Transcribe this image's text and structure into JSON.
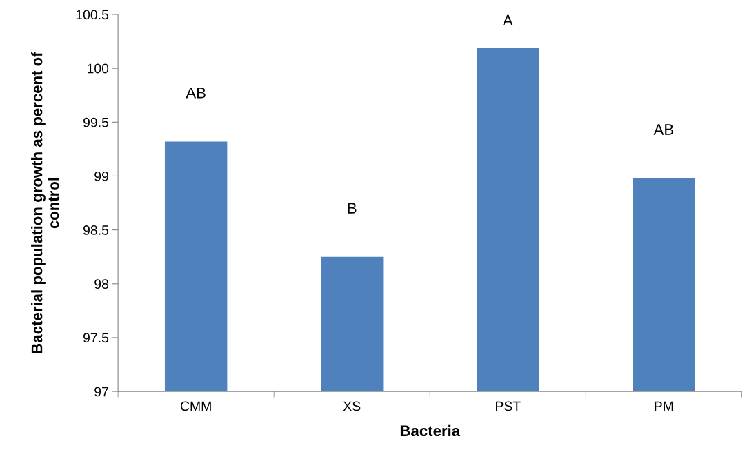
{
  "chart_data": {
    "type": "bar",
    "xlabel": "Bacteria",
    "ylabel": "Bacterial population growth as percent of\ncontrol",
    "categories": [
      "CMM",
      "XS",
      "PST",
      "PM"
    ],
    "values": [
      99.32,
      98.25,
      100.19,
      98.98
    ],
    "color": "#4f81bd",
    "ylim": [
      97,
      100.5
    ],
    "yticks": [
      97,
      97.5,
      98,
      98.5,
      99,
      99.5,
      100,
      100.5
    ],
    "annotations": [
      {
        "text": "AB",
        "x": "CMM",
        "y": 99.32
      },
      {
        "text": "B",
        "x": "XS",
        "y": 98.25
      },
      {
        "text": "A",
        "x": "PST",
        "y": 100.19
      },
      {
        "text": "AB",
        "x": "PM",
        "y": 98.98
      }
    ],
    "grid": false,
    "legend": false
  }
}
